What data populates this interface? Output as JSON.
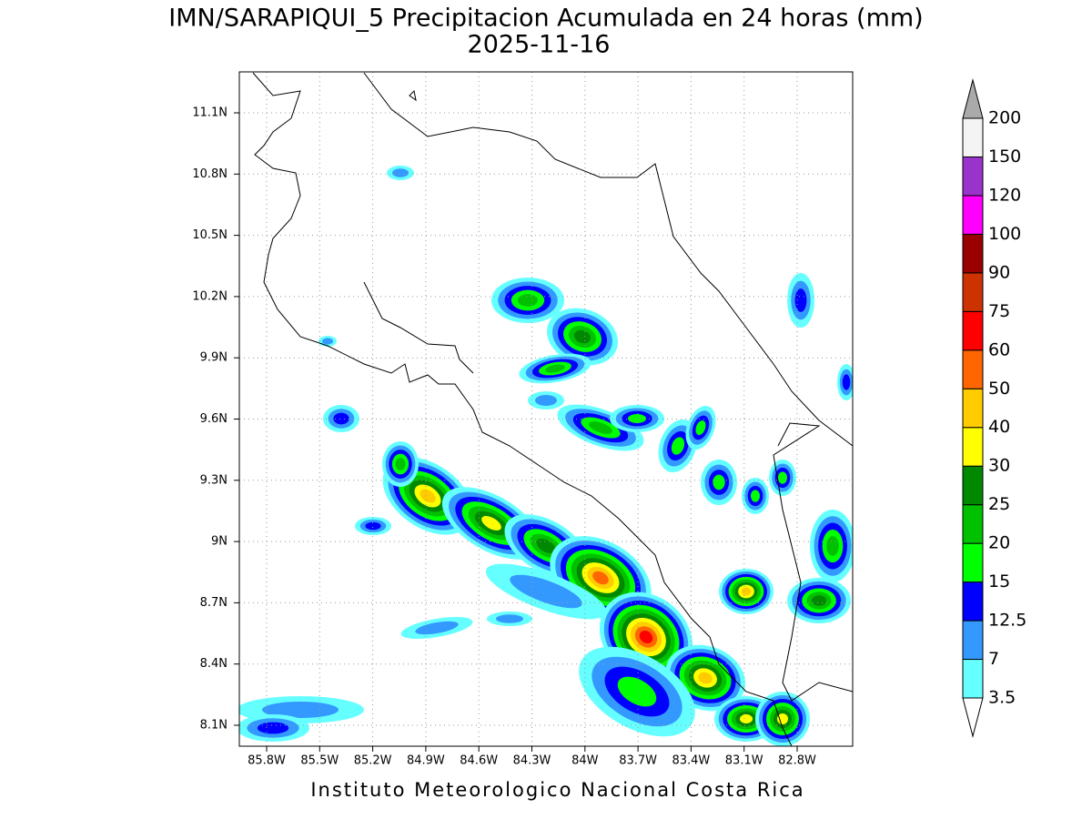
{
  "header": {
    "title": "IMN/SARAPIQUI_5 Precipitacion Acumulada en 24 horas (mm)",
    "date": "2025-11-16"
  },
  "map": {
    "lon_labels": [
      "85.8W",
      "85.5W",
      "85.2W",
      "84.9W",
      "84.6W",
      "84.3W",
      "84W",
      "83.7W",
      "83.4W",
      "83.1W",
      "82.8W"
    ],
    "lat_labels": [
      "11.1N",
      "10.8N",
      "10.5N",
      "10.2N",
      "9.9N",
      "9.6N",
      "9.3N",
      "9N",
      "8.7N",
      "8.4N",
      "8.1N"
    ]
  },
  "colorbar": {
    "levels": [
      3.5,
      7,
      12.5,
      15,
      20,
      25,
      30,
      40,
      50,
      60,
      75,
      90,
      100,
      120,
      150,
      200
    ],
    "colors": [
      "#66ffff",
      "#3399ff",
      "#0000ff",
      "#00ff00",
      "#00c000",
      "#008800",
      "#ffff00",
      "#ffcc00",
      "#ff6600",
      "#ff0000",
      "#cc3300",
      "#990000",
      "#ff00ff",
      "#9933cc",
      "#f4f4f4"
    ],
    "above_color": "#aaaaaa",
    "below_color": "#ffffff"
  },
  "footer": "Instituto Meteorologico Nacional Costa Rica"
}
